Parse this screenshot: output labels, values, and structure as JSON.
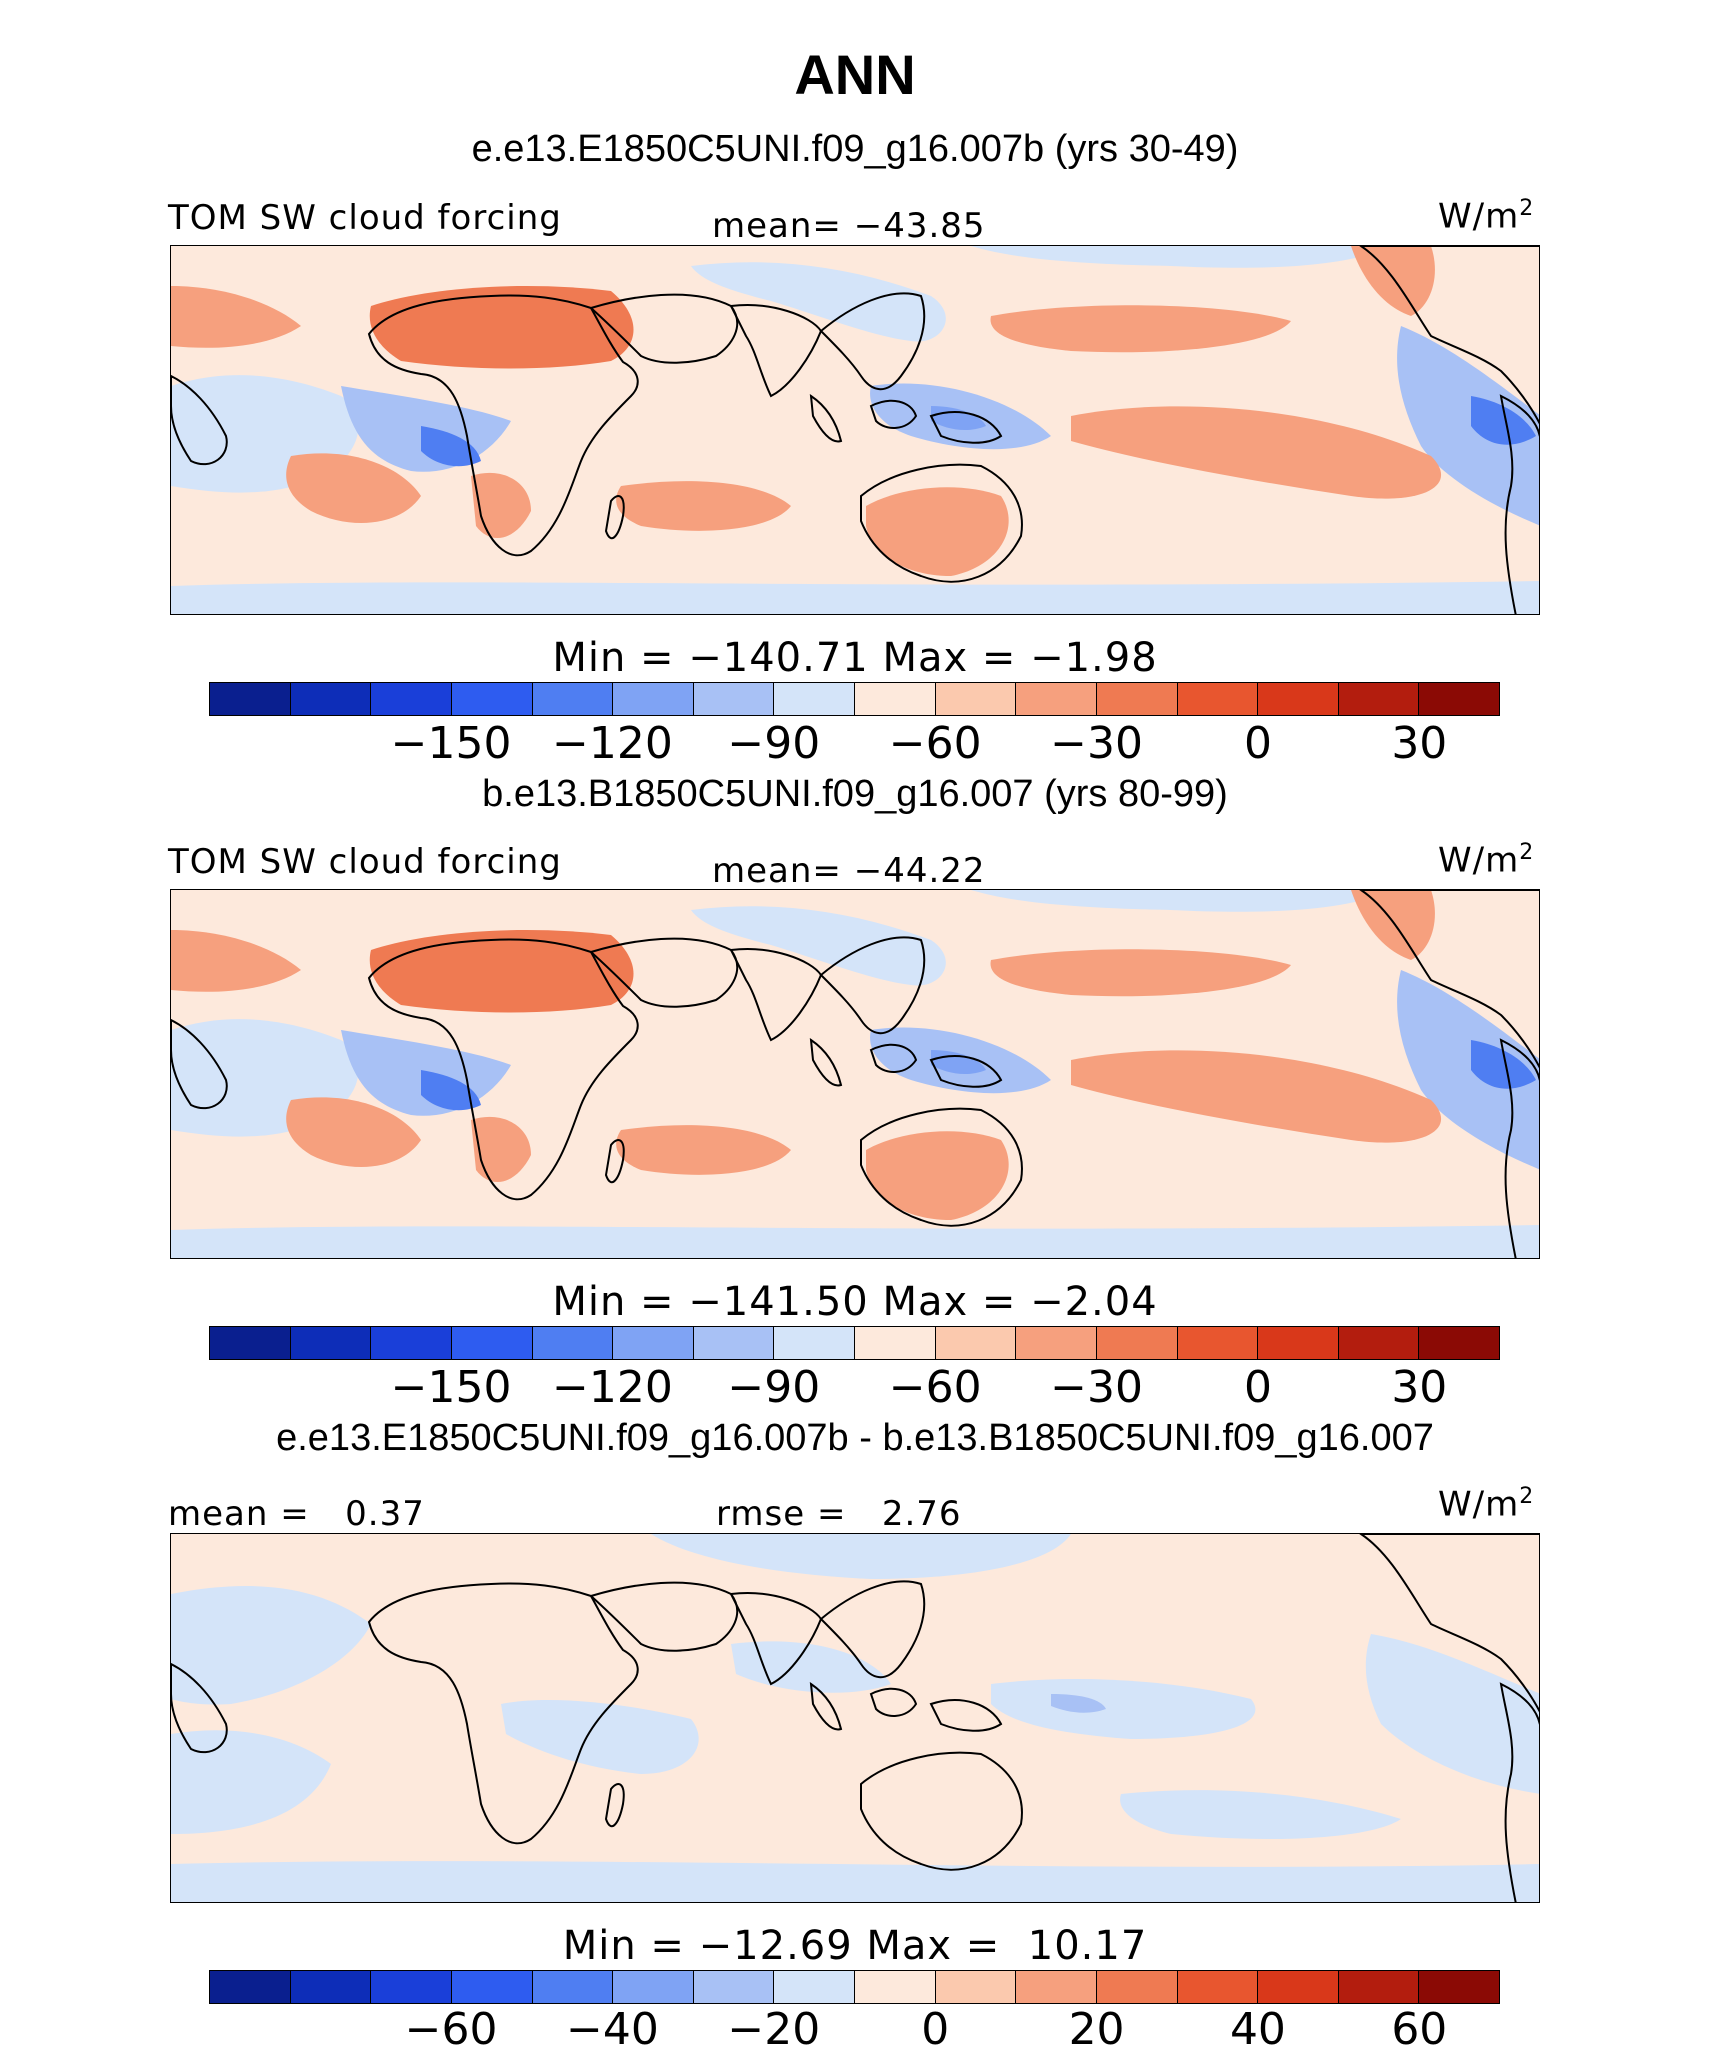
{
  "title": "ANN",
  "colors": [
    "#0a1f8f",
    "#0d2db8",
    "#1a3fd9",
    "#2e5cf0",
    "#4f7ef2",
    "#7fa3f4",
    "#a8c1f5",
    "#d4e4f9",
    "#fde9dc",
    "#fbc9ae",
    "#f6a07e",
    "#ef7a52",
    "#e8562f",
    "#d9381a",
    "#b31d0e",
    "#8b0a05"
  ],
  "panels": [
    {
      "subtitle": "e.e13.E1850C5UNI.f09_g16.007b (yrs 30-49)",
      "left_label": "TOM SW cloud forcing",
      "center_label": "mean= −43.85",
      "units_base": "W/m",
      "units_sup": "2",
      "minmax": "Min = −140.71 Max = −1.98",
      "tick_labels": [
        "−150",
        "−120",
        "−90",
        "−60",
        "−30",
        "0",
        "30"
      ],
      "kind": "field"
    },
    {
      "subtitle": "b.e13.B1850C5UNI.f09_g16.007 (yrs 80-99)",
      "left_label": "TOM SW cloud forcing",
      "center_label": "mean= −44.22",
      "units_base": "W/m",
      "units_sup": "2",
      "minmax": "Min = −141.50 Max = −2.04",
      "tick_labels": [
        "−150",
        "−120",
        "−90",
        "−60",
        "−30",
        "0",
        "30"
      ],
      "kind": "field"
    },
    {
      "subtitle": "e.e13.E1850C5UNI.f09_g16.007b - b.e13.B1850C5UNI.f09_g16.007",
      "left_label": "mean =   0.37",
      "center_label": "rmse =   2.76",
      "units_base": "W/m",
      "units_sup": "2",
      "minmax": "Min = −12.69 Max =  10.17",
      "tick_labels": [
        "−60",
        "−40",
        "−20",
        "0",
        "20",
        "40",
        "60"
      ],
      "kind": "diff"
    }
  ]
}
